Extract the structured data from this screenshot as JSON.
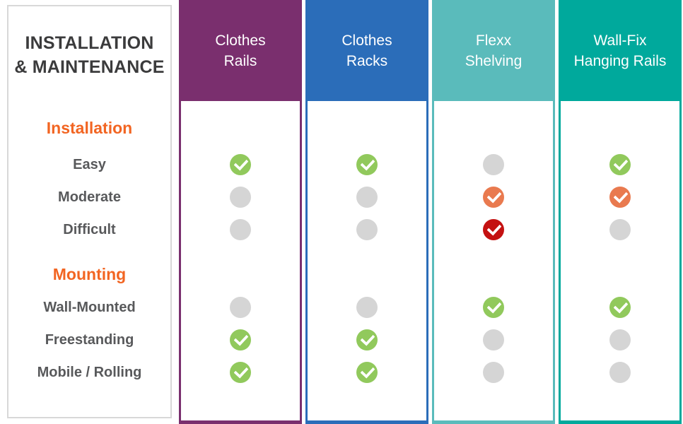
{
  "palette": {
    "panel_border": "#D8D8D8",
    "title_text": "#3B3B3C",
    "section_heading_orange": "#F26522",
    "row_label_gray": "#58595B",
    "header_text": "#FFFFFF",
    "dot_gray": "#D5D5D5",
    "check_green": "#91C95C",
    "check_orange": "#E97A4F",
    "check_red": "#C41111",
    "col_clothes_rails_purple": "#7A2F6E",
    "col_clothes_racks_blue": "#2B6DB9",
    "col_flexx_shelving_teal": "#5ABBBB",
    "col_wall_fix_teal": "#00A99C"
  },
  "left_panel": {
    "title_line1": "INSTALLATION",
    "title_line2": "& MAINTENANCE",
    "sections": [
      {
        "label": "Installation",
        "rows": [
          {
            "label": "Easy"
          },
          {
            "label": "Moderate"
          },
          {
            "label": "Difficult"
          }
        ]
      },
      {
        "label": "Mounting",
        "rows": [
          {
            "label": "Wall-Mounted"
          },
          {
            "label": "Freestanding"
          },
          {
            "label": "Mobile / Rolling"
          }
        ]
      }
    ]
  },
  "products": [
    {
      "name_line1": "Clothes",
      "name_line2": "Rails",
      "accent": "#7A2F6E",
      "cells": [
        "check-green",
        "dot-gray",
        "dot-gray",
        "dot-gray",
        "check-green",
        "check-green"
      ]
    },
    {
      "name_line1": "Clothes",
      "name_line2": "Racks",
      "accent": "#2B6DB9",
      "cells": [
        "check-green",
        "dot-gray",
        "dot-gray",
        "dot-gray",
        "check-green",
        "check-green"
      ]
    },
    {
      "name_line1": "Flexx",
      "name_line2": "Shelving",
      "accent": "#5ABBBB",
      "cells": [
        "dot-gray",
        "check-orange",
        "check-red",
        "check-green",
        "dot-gray",
        "dot-gray"
      ]
    },
    {
      "name_line1": "Wall-Fix",
      "name_line2": "Hanging Rails",
      "accent": "#00A99C",
      "cells": [
        "check-green",
        "check-orange",
        "dot-gray",
        "check-green",
        "dot-gray",
        "dot-gray"
      ]
    }
  ],
  "chart_data": {
    "type": "table",
    "title": "INSTALLATION & MAINTENANCE",
    "columns": [
      "Clothes Rails",
      "Clothes Racks",
      "Flexx Shelving",
      "Wall-Fix Hanging Rails"
    ],
    "row_groups": [
      {
        "group": "Installation",
        "rows": [
          "Easy",
          "Moderate",
          "Difficult"
        ]
      },
      {
        "group": "Mounting",
        "rows": [
          "Wall-Mounted",
          "Freestanding",
          "Mobile / Rolling"
        ]
      }
    ],
    "cell_states": {
      "Easy": [
        "check-green",
        "check-green",
        "dot-gray",
        "check-green"
      ],
      "Moderate": [
        "dot-gray",
        "dot-gray",
        "check-orange",
        "check-orange"
      ],
      "Difficult": [
        "dot-gray",
        "dot-gray",
        "check-red",
        "dot-gray"
      ],
      "Wall-Mounted": [
        "dot-gray",
        "dot-gray",
        "check-green",
        "check-green"
      ],
      "Freestanding": [
        "check-green",
        "check-green",
        "dot-gray",
        "dot-gray"
      ],
      "Mobile / Rolling": [
        "check-green",
        "check-green",
        "dot-gray",
        "dot-gray"
      ]
    },
    "state_colors": {
      "check-green": "#91C95C",
      "check-orange": "#E97A4F",
      "check-red": "#C41111",
      "dot-gray": "#D5D5D5"
    },
    "legend_position": "none",
    "grid": false
  }
}
